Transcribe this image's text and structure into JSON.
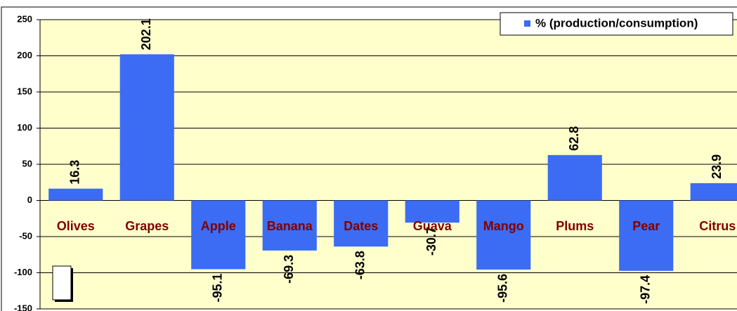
{
  "chart_data": {
    "type": "bar",
    "categories": [
      "Olives",
      "Grapes",
      "Apple",
      "Banana",
      "Dates",
      "Guava",
      "Mango",
      "Plums",
      "Pear",
      "Citrus"
    ],
    "series": [
      {
        "name": "% (production/consumption)",
        "color": "#3c6cf4",
        "values": [
          16.3,
          202.1,
          -95.1,
          -69.3,
          -63.8,
          -30.7,
          -95.6,
          62.8,
          -97.4,
          23.9
        ]
      }
    ],
    "ylim": [
      -150,
      250
    ],
    "yticks": [
      -150,
      -100,
      -50,
      0,
      50,
      100,
      150,
      200,
      250
    ],
    "grid": true,
    "legend": "top-right"
  }
}
